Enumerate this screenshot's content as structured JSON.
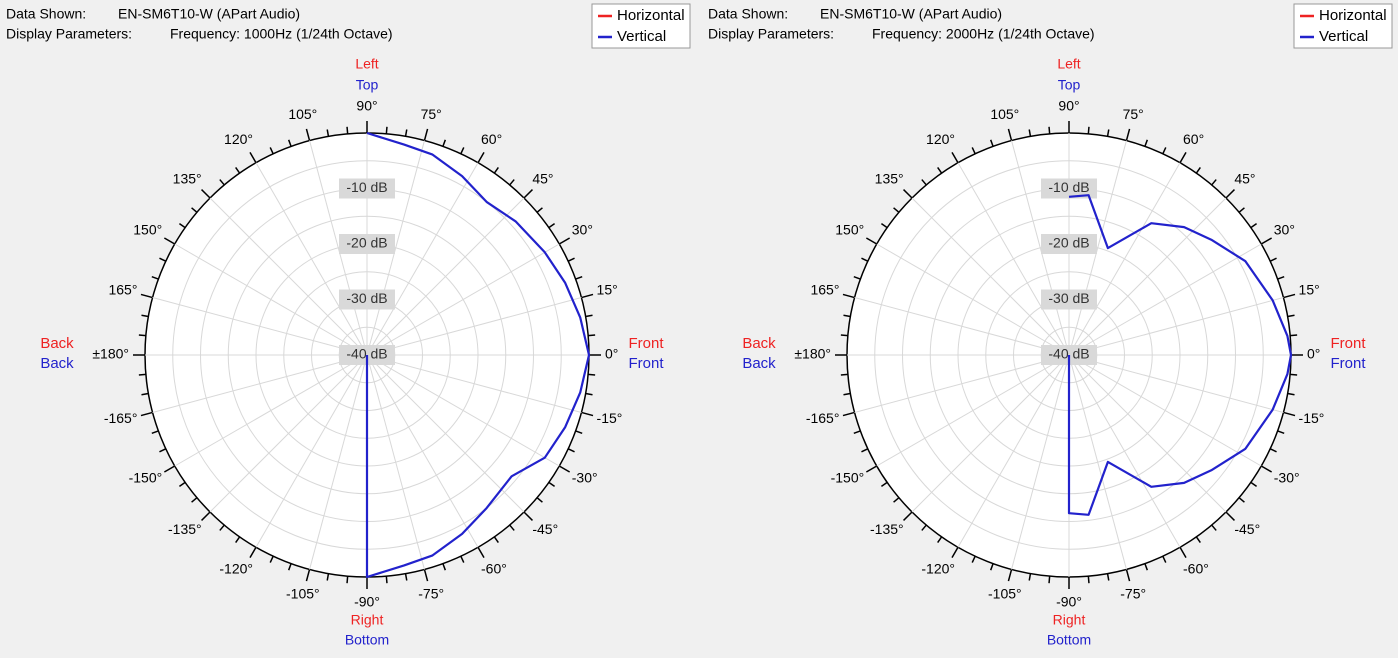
{
  "chart_data": [
    {
      "type": "polar",
      "header": {
        "data_label": "Data Shown:",
        "data_value": "EN-SM6T10-W (APart Audio)",
        "params_label": "Display Parameters:",
        "params_value": "Frequency: 1000Hz (1/24th Octave)"
      },
      "legend": {
        "position": "top-right",
        "items": [
          {
            "name": "Horizontal",
            "color": "#ee2222"
          },
          {
            "name": "Vertical",
            "color": "#2222cc"
          }
        ]
      },
      "orientation_labels": {
        "top": [
          "Left",
          "Top"
        ],
        "bottom": [
          "Right",
          "Bottom"
        ],
        "left": [
          "Back",
          "Back"
        ],
        "right": [
          "Front",
          "Front"
        ]
      },
      "angle_labels": [
        {
          "angle": 0,
          "text": "0°"
        },
        {
          "angle": 15,
          "text": "15°"
        },
        {
          "angle": 30,
          "text": "30°"
        },
        {
          "angle": 45,
          "text": "45°"
        },
        {
          "angle": 60,
          "text": "60°"
        },
        {
          "angle": 75,
          "text": "75°"
        },
        {
          "angle": 90,
          "text": "90°"
        },
        {
          "angle": 105,
          "text": "105°"
        },
        {
          "angle": 120,
          "text": "120°"
        },
        {
          "angle": 135,
          "text": "135°"
        },
        {
          "angle": 150,
          "text": "150°"
        },
        {
          "angle": 165,
          "text": "165°"
        },
        {
          "angle": 180,
          "text": "±180°"
        },
        {
          "angle": -165,
          "text": "-165°"
        },
        {
          "angle": -150,
          "text": "-150°"
        },
        {
          "angle": -135,
          "text": "-135°"
        },
        {
          "angle": -120,
          "text": "-120°"
        },
        {
          "angle": -105,
          "text": "-105°"
        },
        {
          "angle": -90,
          "text": "-90°"
        },
        {
          "angle": -75,
          "text": "-75°"
        },
        {
          "angle": -60,
          "text": "-60°"
        },
        {
          "angle": -45,
          "text": "-45°"
        },
        {
          "angle": -30,
          "text": "-30°"
        },
        {
          "angle": -15,
          "text": "-15°"
        }
      ],
      "db_rings": [
        -10,
        -20,
        -30,
        -40
      ],
      "db_labels": [
        "-10 dB",
        "-20 dB",
        "-30 dB",
        "-40 dB"
      ],
      "r_range": [
        -40,
        0
      ],
      "series": [
        {
          "name": "Vertical",
          "color": "#2222cc",
          "points": [
            {
              "angle": 90,
              "db": 0
            },
            {
              "angle": 80,
              "db": -1.5
            },
            {
              "angle": 72,
              "db": -2
            },
            {
              "angle": 62,
              "db": -3.5
            },
            {
              "angle": 52,
              "db": -5
            },
            {
              "angle": 42,
              "db": -4
            },
            {
              "angle": 30,
              "db": -3
            },
            {
              "angle": 20,
              "db": -2
            },
            {
              "angle": 10,
              "db": -1
            },
            {
              "angle": 0,
              "db": 0
            },
            {
              "angle": -10,
              "db": -1
            },
            {
              "angle": -20,
              "db": -2
            },
            {
              "angle": -30,
              "db": -3
            },
            {
              "angle": -40,
              "db": -6
            },
            {
              "angle": -52,
              "db": -5
            },
            {
              "angle": -62,
              "db": -3.5
            },
            {
              "angle": -72,
              "db": -2
            },
            {
              "angle": -80,
              "db": -1.5
            },
            {
              "angle": -90,
              "db": 0
            },
            {
              "angle": 180,
              "db": -40
            }
          ]
        }
      ]
    },
    {
      "type": "polar",
      "header": {
        "data_label": "Data Shown:",
        "data_value": "EN-SM6T10-W (APart Audio)",
        "params_label": "Display Parameters:",
        "params_value": "Frequency: 2000Hz (1/24th Octave)"
      },
      "legend": {
        "position": "top-right",
        "items": [
          {
            "name": "Horizontal",
            "color": "#ee2222"
          },
          {
            "name": "Vertical",
            "color": "#2222cc"
          }
        ]
      },
      "orientation_labels": {
        "top": [
          "Left",
          "Top"
        ],
        "bottom": [
          "Right",
          "Bottom"
        ],
        "left": [
          "Back",
          "Back"
        ],
        "right": [
          "Front",
          "Front"
        ]
      },
      "angle_labels": [
        {
          "angle": 0,
          "text": "0°"
        },
        {
          "angle": 15,
          "text": "15°"
        },
        {
          "angle": 30,
          "text": "30°"
        },
        {
          "angle": 45,
          "text": "45°"
        },
        {
          "angle": 60,
          "text": "60°"
        },
        {
          "angle": 75,
          "text": "75°"
        },
        {
          "angle": 90,
          "text": "90°"
        },
        {
          "angle": 105,
          "text": "105°"
        },
        {
          "angle": 120,
          "text": "120°"
        },
        {
          "angle": 135,
          "text": "135°"
        },
        {
          "angle": 150,
          "text": "150°"
        },
        {
          "angle": 165,
          "text": "165°"
        },
        {
          "angle": 180,
          "text": "±180°"
        },
        {
          "angle": -165,
          "text": "-165°"
        },
        {
          "angle": -150,
          "text": "-150°"
        },
        {
          "angle": -135,
          "text": "-135°"
        },
        {
          "angle": -120,
          "text": "-120°"
        },
        {
          "angle": -105,
          "text": "-105°"
        },
        {
          "angle": -90,
          "text": "-90°"
        },
        {
          "angle": -75,
          "text": "-75°"
        },
        {
          "angle": -60,
          "text": "-60°"
        },
        {
          "angle": -45,
          "text": "-45°"
        },
        {
          "angle": -30,
          "text": "-30°"
        },
        {
          "angle": -15,
          "text": "-15°"
        }
      ],
      "db_rings": [
        -10,
        -20,
        -30,
        -40
      ],
      "db_labels": [
        "-10 dB",
        "-20 dB",
        "-30 dB",
        "-40 dB"
      ],
      "r_range": [
        -40,
        0
      ],
      "series": [
        {
          "name": "Vertical",
          "color": "#2222cc",
          "points": [
            {
              "angle": 90,
              "db": -11.5
            },
            {
              "angle": 83,
              "db": -11
            },
            {
              "angle": 70,
              "db": -19.5
            },
            {
              "angle": 58,
              "db": -12
            },
            {
              "angle": 48,
              "db": -9
            },
            {
              "angle": 39,
              "db": -7
            },
            {
              "angle": 28,
              "db": -4
            },
            {
              "angle": 15,
              "db": -2
            },
            {
              "angle": 5,
              "db": -0.5
            },
            {
              "angle": 0,
              "db": 0
            },
            {
              "angle": -5,
              "db": -0.5
            },
            {
              "angle": -15,
              "db": -2
            },
            {
              "angle": -28,
              "db": -4
            },
            {
              "angle": -39,
              "db": -7
            },
            {
              "angle": -48,
              "db": -9
            },
            {
              "angle": -58,
              "db": -12
            },
            {
              "angle": -70,
              "db": -19.5
            },
            {
              "angle": -83,
              "db": -11
            },
            {
              "angle": -90,
              "db": -11.5
            },
            {
              "angle": 180,
              "db": -40
            }
          ]
        }
      ]
    }
  ]
}
